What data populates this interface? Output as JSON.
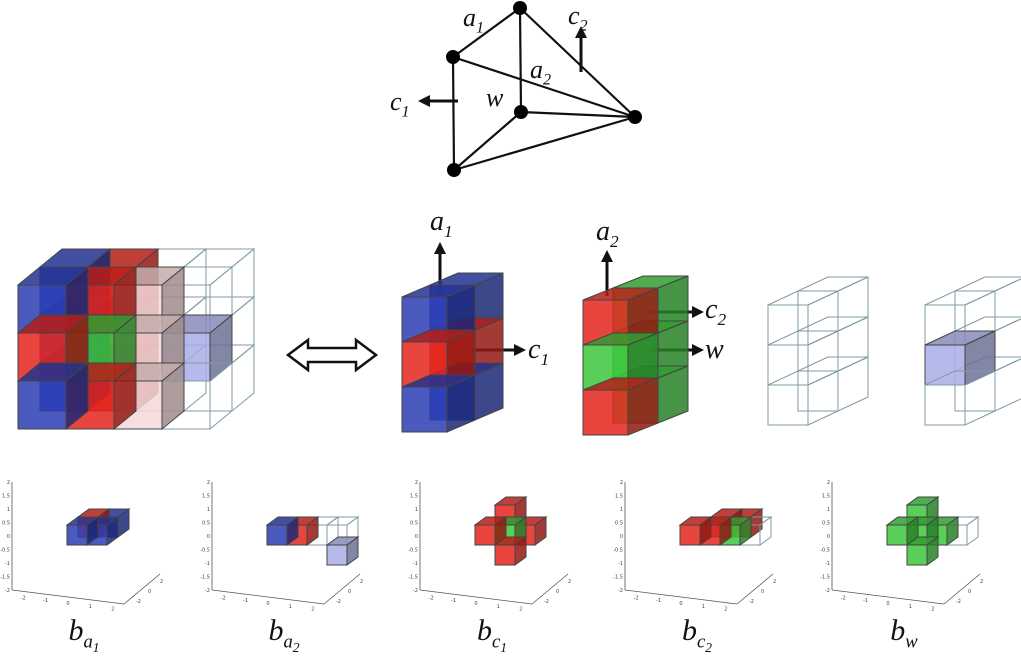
{
  "graph": {
    "labels": [
      {
        "base": "a",
        "sub": "1"
      },
      {
        "base": "c",
        "sub": "2"
      },
      {
        "base": "a",
        "sub": "2"
      },
      {
        "base": "c",
        "sub": "1"
      },
      {
        "base": "w"
      }
    ]
  },
  "blocks": {
    "labels": [
      {
        "base": "a",
        "sub": "1"
      },
      {
        "base": "c",
        "sub": "1"
      },
      {
        "base": "a",
        "sub": "2"
      },
      {
        "base": "c",
        "sub": "2"
      },
      {
        "base": "w"
      }
    ]
  },
  "plots": [
    {
      "label": {
        "base": "b",
        "sub": "a",
        "subsub": "1"
      }
    },
    {
      "label": {
        "base": "b",
        "sub": "a",
        "subsub": "2"
      }
    },
    {
      "label": {
        "base": "b",
        "sub": "c",
        "subsub": "1"
      }
    },
    {
      "label": {
        "base": "b",
        "sub": "c",
        "subsub": "2"
      }
    },
    {
      "label": {
        "base": "b",
        "sub": "w"
      }
    }
  ],
  "axis": {
    "z_ticks": [
      2,
      1.5,
      1,
      0.5,
      0,
      -0.5,
      -1,
      -1.5,
      -2
    ],
    "x_ticks": [
      -2,
      -1,
      0,
      1,
      2
    ],
    "y_ticks": [
      -2,
      0,
      2
    ]
  }
}
